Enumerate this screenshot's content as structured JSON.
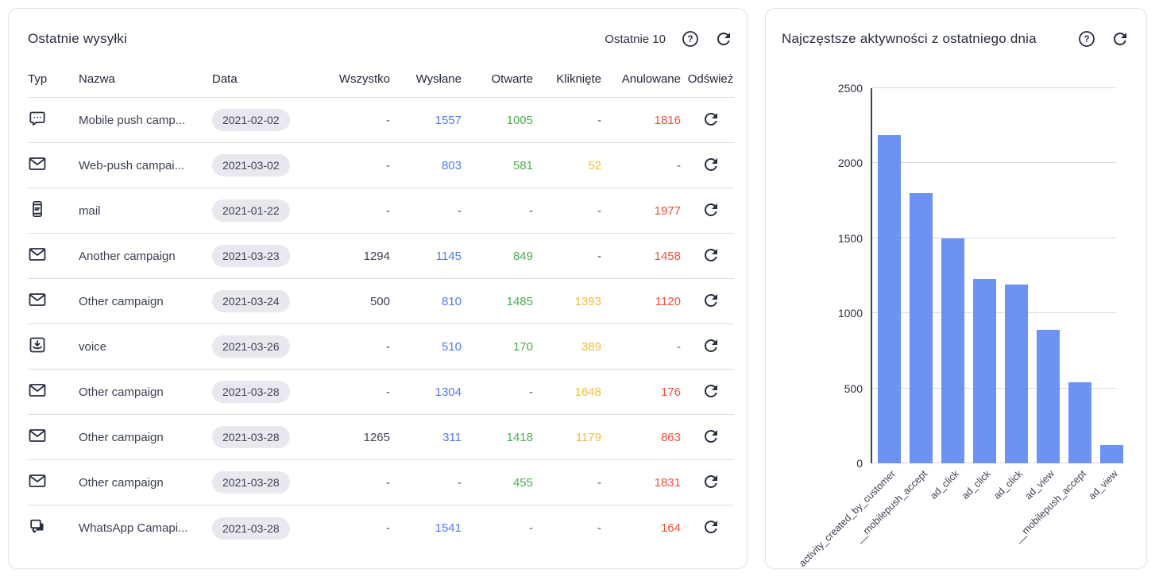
{
  "left_panel": {
    "title": "Ostatnie wysyłki",
    "range_label": "Ostatnie 10",
    "columns": [
      "Typ",
      "Nazwa",
      "Data",
      "Wszystko",
      "Wysłane",
      "Otwarte",
      "Kliknięte",
      "Anulowane",
      "Odśwież"
    ],
    "rows": [
      {
        "icon": "chat-dots-icon",
        "name": "Mobile push camp...",
        "date": "2021-02-02",
        "all": "-",
        "sent": "1557",
        "opened": "1005",
        "clicked": "-",
        "cancelled": "1816"
      },
      {
        "icon": "envelope-icon",
        "name": "Web-push campai...",
        "date": "2021-03-02",
        "all": "-",
        "sent": "803",
        "opened": "581",
        "clicked": "52",
        "cancelled": "-"
      },
      {
        "icon": "mobile-icon",
        "name": "mail",
        "date": "2021-01-22",
        "all": "-",
        "sent": "-",
        "opened": "-",
        "clicked": "-",
        "cancelled": "1977"
      },
      {
        "icon": "envelope-icon",
        "name": "Another campaign",
        "date": "2021-03-23",
        "all": "1294",
        "sent": "1145",
        "opened": "849",
        "clicked": "-",
        "cancelled": "1458"
      },
      {
        "icon": "envelope-icon",
        "name": "Other campaign",
        "date": "2021-03-24",
        "all": "500",
        "sent": "810",
        "opened": "1485",
        "clicked": "1393",
        "cancelled": "1120"
      },
      {
        "icon": "inbox-download-icon",
        "name": "voice",
        "date": "2021-03-26",
        "all": "-",
        "sent": "510",
        "opened": "170",
        "clicked": "389",
        "cancelled": "-"
      },
      {
        "icon": "envelope-icon",
        "name": "Other campaign",
        "date": "2021-03-28",
        "all": "-",
        "sent": "1304",
        "opened": "-",
        "clicked": "1648",
        "cancelled": "176"
      },
      {
        "icon": "envelope-icon",
        "name": "Other campaign",
        "date": "2021-03-28",
        "all": "1265",
        "sent": "311",
        "opened": "1418",
        "clicked": "1179",
        "cancelled": "863"
      },
      {
        "icon": "envelope-icon",
        "name": "Other campaign",
        "date": "2021-03-28",
        "all": "-",
        "sent": "-",
        "opened": "455",
        "clicked": "-",
        "cancelled": "1831"
      },
      {
        "icon": "chat-duplicate-icon",
        "name": "WhatsApp Camapi...",
        "date": "2021-03-28",
        "all": "-",
        "sent": "1541",
        "opened": "-",
        "clicked": "-",
        "cancelled": "164"
      }
    ]
  },
  "right_panel": {
    "title": "Najczęstsze aktywności z ostatniego dnia"
  },
  "chart_data": {
    "type": "bar",
    "title": "Najczęstsze aktywności z ostatniego dnia",
    "categories": [
      "activity_created_by_customer",
      "__mobilepush_accept",
      "ad_click",
      "ad_click",
      "ad_click",
      "ad_view",
      "__mobilepush_accept",
      "ad_view"
    ],
    "values": [
      2190,
      1800,
      1500,
      1230,
      1190,
      890,
      540,
      120
    ],
    "xlabel": "",
    "ylabel": "",
    "ylim": [
      0,
      2500
    ],
    "yticks": [
      0,
      500,
      1000,
      1500,
      2000,
      2500
    ],
    "grid": true,
    "legend": "none",
    "bar_color": "#6c92f4"
  },
  "colors": {
    "all": "#3f4656",
    "sent": "#5379f6",
    "opened": "#4caf50",
    "clicked": "#f2bd3a",
    "cancelled": "#f0503c",
    "dash": "#4a505e"
  }
}
